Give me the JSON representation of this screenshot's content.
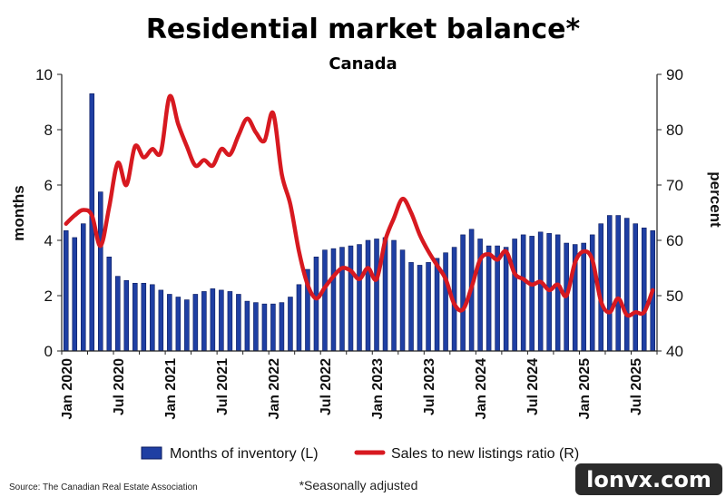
{
  "chart_data": {
    "type": "bar+line",
    "title": "Residential market balance*",
    "subtitle": "Canada",
    "ylabel_left": "months",
    "ylabel_right": "percent",
    "ylim_left": [
      0,
      10
    ],
    "ylim_right": [
      40,
      90
    ],
    "yticks_left": [
      "0",
      "2",
      "4",
      "6",
      "8",
      "10"
    ],
    "yticks_right": [
      "40",
      "50",
      "60",
      "70",
      "80",
      "90"
    ],
    "x_tick_labels": [
      "Jan 2020",
      "Jul 2020",
      "Jan 2021",
      "Jul 2021",
      "Jan 2022",
      "Jul 2022",
      "Jan 2023",
      "Jul 2023",
      "Jan 2024",
      "Jul 2024",
      "Jan 2025",
      "Jul 2025"
    ],
    "x_tick_months": [
      0,
      6,
      12,
      18,
      24,
      30,
      36,
      42,
      48,
      54,
      60,
      66
    ],
    "x_start": "Jan 2020",
    "x_end": "Aug 2025",
    "series": [
      {
        "name": "Months of inventory (L)",
        "type": "bar",
        "axis": "left",
        "color": "#1f3fa3",
        "values": [
          4.35,
          4.1,
          4.6,
          9.3,
          5.75,
          3.4,
          2.7,
          2.55,
          2.45,
          2.45,
          2.4,
          2.2,
          2.05,
          1.95,
          1.85,
          2.05,
          2.15,
          2.25,
          2.2,
          2.15,
          2.05,
          1.8,
          1.75,
          1.7,
          1.7,
          1.75,
          1.95,
          2.4,
          2.95,
          3.4,
          3.65,
          3.7,
          3.75,
          3.8,
          3.85,
          4.0,
          4.05,
          4.1,
          4.0,
          3.65,
          3.2,
          3.1,
          3.2,
          3.35,
          3.55,
          3.75,
          4.2,
          4.4,
          4.05,
          3.8,
          3.8,
          3.75,
          4.05,
          4.2,
          4.15,
          4.3,
          4.25,
          4.2,
          3.9,
          3.85,
          3.9,
          4.2,
          4.6,
          4.9,
          4.9,
          4.8,
          4.6,
          4.45,
          4.35
        ]
      },
      {
        "name": "Sales to new listings ratio (R)",
        "type": "line",
        "axis": "right",
        "color": "#d71920",
        "values": [
          63,
          64.5,
          65.5,
          64.5,
          59,
          66,
          74,
          70,
          77,
          75,
          76.5,
          76,
          86,
          81,
          77,
          73.5,
          74.5,
          73.5,
          76.5,
          75.5,
          79,
          82,
          79.5,
          78,
          83,
          72,
          66.5,
          58,
          52,
          49.5,
          51.5,
          53.5,
          55,
          54.5,
          53,
          55,
          53,
          60,
          64,
          67.5,
          65,
          61,
          58,
          55.5,
          53,
          48.5,
          47.5,
          51.5,
          56.5,
          57.5,
          56.5,
          58,
          54,
          53,
          52,
          52.5,
          51,
          52,
          50,
          56,
          58,
          56.5,
          49,
          47,
          49.5,
          46.5,
          47,
          47,
          51
        ]
      }
    ],
    "legend_position": "bottom",
    "source": "Source: The Canadian Real Estate Association",
    "footnote": "*Seasonally adjusted"
  },
  "watermark": "lonvx.com"
}
